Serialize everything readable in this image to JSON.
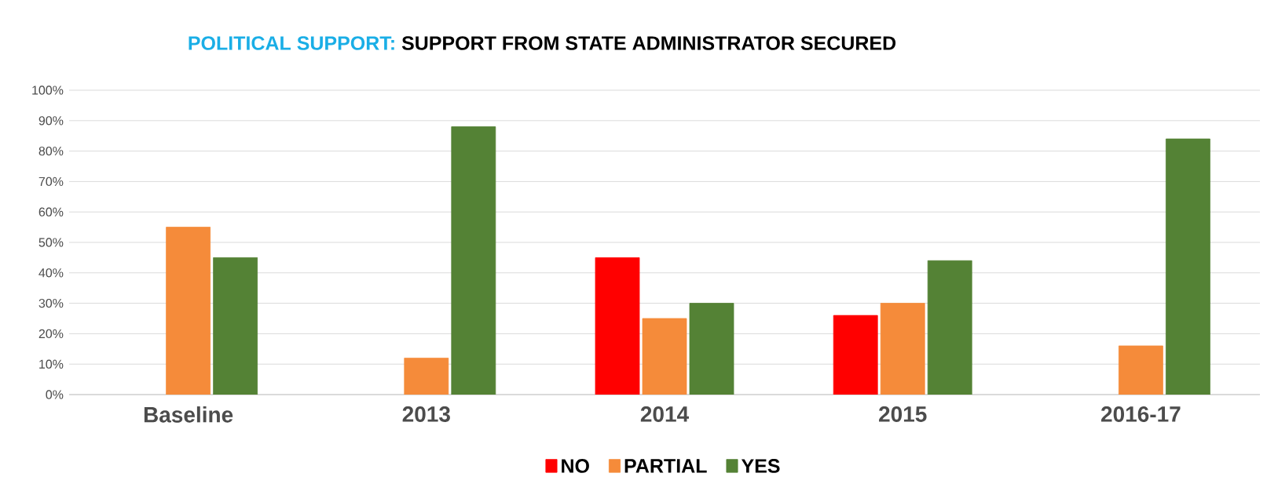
{
  "chart_data": {
    "type": "bar",
    "title": "POLITICAL SUPPORT:",
    "subtitle": "SUPPORT FROM STATE ADMINISTRATOR SECURED",
    "categories": [
      "Baseline",
      "2013",
      "2014",
      "2015",
      "2016-17"
    ],
    "series": [
      {
        "name": "NO",
        "color": "#ff0000",
        "values": [
          null,
          null,
          45,
          26,
          null
        ]
      },
      {
        "name": "PARTIAL",
        "color": "#f58b3a",
        "values": [
          55,
          12,
          25,
          30,
          16
        ]
      },
      {
        "name": "YES",
        "color": "#548235",
        "values": [
          45,
          88,
          30,
          44,
          84
        ]
      }
    ],
    "ylim": [
      0,
      100
    ],
    "yticks": [
      {
        "value": 0,
        "label": "0%"
      },
      {
        "value": 10,
        "label": "10%"
      },
      {
        "value": 20,
        "label": "20%"
      },
      {
        "value": 30,
        "label": "30%"
      },
      {
        "value": 40,
        "label": "40%"
      },
      {
        "value": 50,
        "label": "50%"
      },
      {
        "value": 60,
        "label": "60%"
      },
      {
        "value": 70,
        "label": "70%"
      },
      {
        "value": 80,
        "label": "80%"
      },
      {
        "value": 90,
        "label": "90%"
      },
      {
        "value": 100,
        "label": "100%"
      }
    ],
    "grid": "y",
    "legend": "bottom"
  }
}
